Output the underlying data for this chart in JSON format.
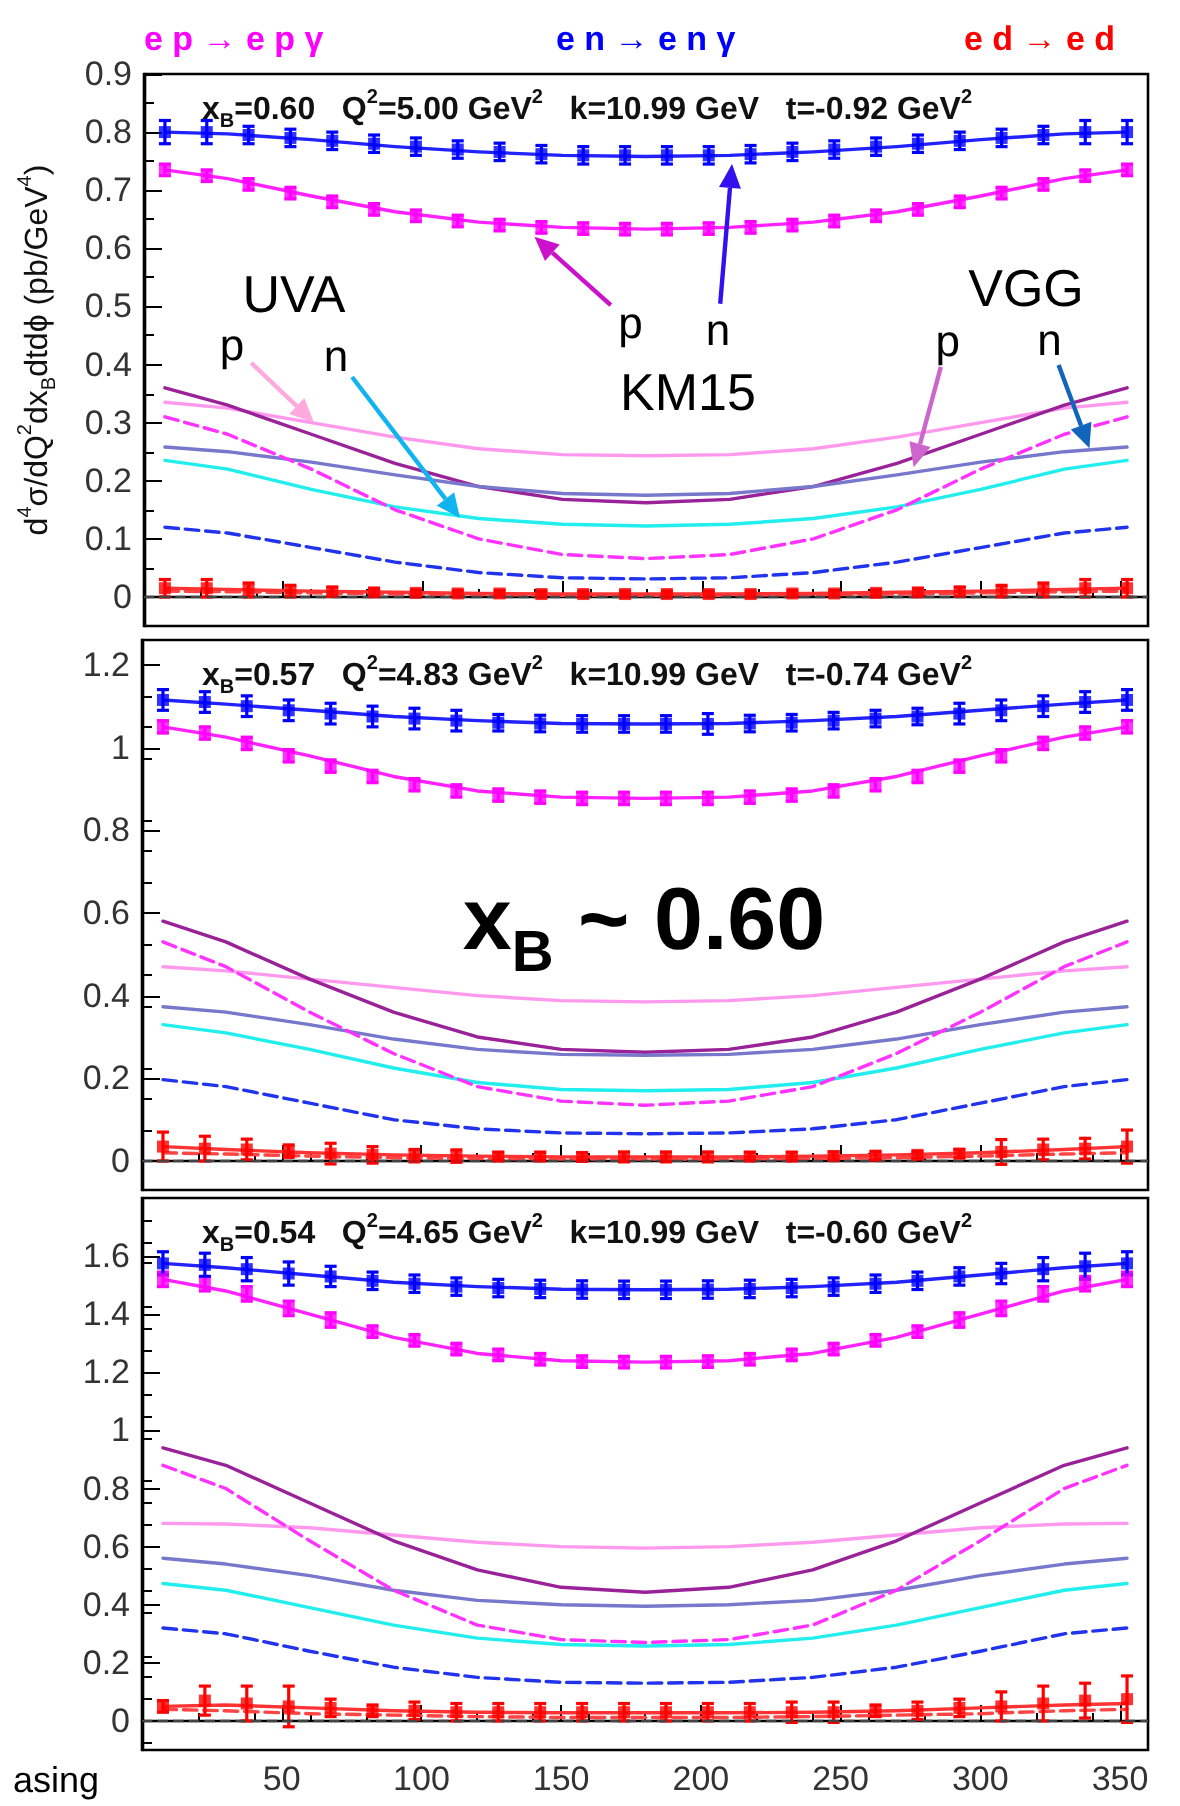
{
  "chart_data": [
    {
      "type": "line",
      "title": "x$_{B}$=0.60   Q$^{2}$=5.00 GeV$^{2}$   k=10.99 GeV   t=-0.92 GeV$^{2}$",
      "ylabel": "d$^{4}$σ/dQ$^{2}$dx$_{B}$dtdϕ (pb/GeV$^{4}$)",
      "legend": "top",
      "tick_labels": "y",
      "xlim": [
        0,
        360
      ],
      "xticks": [
        50,
        100,
        150,
        200,
        250,
        300,
        350
      ],
      "ylim": [
        -0.05,
        0.9
      ],
      "yticks": [
        0,
        0.1,
        0.2,
        0.3,
        0.4,
        0.5,
        0.6,
        0.7,
        0.8,
        0.9
      ],
      "ref_lines": [
        {
          "axis": "y",
          "value": 0,
          "color": "#444444",
          "line_style": "dashed"
        }
      ],
      "annotations": [
        "UVA",
        {
          "text": "p",
          "x": 61,
          "y": 0.3
        },
        "n",
        {
          "text": "p",
          "x": 140,
          "y": 0.62
        },
        "n",
        "KM15",
        "VGG",
        {
          "text": "p",
          "x": 276,
          "y": 0.223
        },
        {
          "text": "n",
          "x": 339,
          "y": 0.256
        }
      ],
      "x": [
        7.5,
        30,
        60,
        90,
        120,
        150,
        180,
        210,
        240,
        270,
        300,
        330,
        352.5
      ],
      "series": [
        {
          "type": "line",
          "color": "#ff99ee",
          "marker": "none",
          "line_style": "solid",
          "values": [
            0.335,
            0.325,
            0.3,
            0.275,
            0.255,
            0.245,
            0.243,
            0.245,
            0.255,
            0.275,
            0.3,
            0.325,
            0.335
          ]
        },
        {
          "type": "line",
          "color": "#22eeee",
          "marker": "none",
          "line_style": "solid",
          "values": [
            0.235,
            0.22,
            0.185,
            0.155,
            0.135,
            0.125,
            0.122,
            0.125,
            0.135,
            0.155,
            0.185,
            0.22,
            0.235
          ]
        },
        {
          "type": "line",
          "color": "#992299",
          "marker": "none",
          "line_style": "solid",
          "values": [
            0.36,
            0.33,
            0.28,
            0.23,
            0.19,
            0.168,
            0.162,
            0.168,
            0.19,
            0.23,
            0.28,
            0.33,
            0.36
          ]
        },
        {
          "type": "line",
          "color": "#7777cc",
          "marker": "none",
          "line_style": "solid",
          "values": [
            0.258,
            0.25,
            0.232,
            0.21,
            0.19,
            0.178,
            0.175,
            0.178,
            0.19,
            0.21,
            0.232,
            0.25,
            0.258
          ]
        },
        {
          "type": "line",
          "color": "#ff33ff",
          "marker": "none",
          "line_style": "dashed",
          "values": [
            0.31,
            0.28,
            0.22,
            0.15,
            0.1,
            0.073,
            0.066,
            0.073,
            0.1,
            0.15,
            0.22,
            0.28,
            0.31
          ]
        },
        {
          "type": "line",
          "color": "#2233ee",
          "marker": "none",
          "line_style": "dashed",
          "values": [
            0.12,
            0.11,
            0.085,
            0.06,
            0.042,
            0.033,
            0.031,
            0.033,
            0.042,
            0.06,
            0.085,
            0.11,
            0.12
          ]
        },
        {
          "type": "line",
          "color": "#ff4444",
          "marker": "none",
          "line_style": "dashed",
          "values": [
            0.01,
            0.009,
            0.007,
            0.005,
            0.004,
            0.003,
            0.003,
            0.003,
            0.004,
            0.005,
            0.007,
            0.009,
            0.01
          ]
        },
        {
          "type": "line",
          "color": "#ff22ff",
          "marker": "none",
          "line_style": "solid",
          "values": [
            0.735,
            0.72,
            0.69,
            0.663,
            0.645,
            0.636,
            0.633,
            0.636,
            0.645,
            0.663,
            0.69,
            0.72,
            0.735
          ]
        },
        {
          "type": "line",
          "color": "#2222ff",
          "marker": "none",
          "line_style": "solid",
          "values": [
            0.8,
            0.797,
            0.787,
            0.775,
            0.766,
            0.76,
            0.758,
            0.76,
            0.766,
            0.775,
            0.787,
            0.797,
            0.8
          ]
        },
        {
          "type": "line",
          "color": "#ff3333",
          "marker": "none",
          "line_style": "solid",
          "values": [
            0.015,
            0.013,
            0.01,
            0.008,
            0.006,
            0.005,
            0.005,
            0.005,
            0.006,
            0.008,
            0.01,
            0.013,
            0.015
          ]
        },
        {
          "type": "scatter",
          "name": "e p → e p γ",
          "color": "#ff00ff",
          "marker": "square",
          "x": [
            7.5,
            22.5,
            37.5,
            52.5,
            67.5,
            82.5,
            97.5,
            112.5,
            127.5,
            142.5,
            157.5,
            172.5,
            187.5,
            202.5,
            217.5,
            232.5,
            247.5,
            262.5,
            277.5,
            292.5,
            307.5,
            322.5,
            337.5,
            352.5
          ],
          "values": [
            0.735,
            0.725,
            0.71,
            0.695,
            0.68,
            0.667,
            0.656,
            0.647,
            0.64,
            0.636,
            0.634,
            0.633,
            0.633,
            0.634,
            0.636,
            0.64,
            0.647,
            0.656,
            0.667,
            0.68,
            0.695,
            0.71,
            0.725,
            0.735
          ],
          "errors": [
            0.01,
            0.01,
            0.01,
            0.01,
            0.01,
            0.01,
            0.01,
            0.01,
            0.01,
            0.01,
            0.01,
            0.01,
            0.01,
            0.01,
            0.01,
            0.01,
            0.01,
            0.01,
            0.01,
            0.01,
            0.01,
            0.01,
            0.01,
            0.01
          ]
        },
        {
          "type": "scatter",
          "name": "e n → e n γ",
          "color": "#0000ff",
          "marker": "square",
          "x": [
            7.5,
            22.5,
            37.5,
            52.5,
            67.5,
            82.5,
            97.5,
            112.5,
            127.5,
            142.5,
            157.5,
            172.5,
            187.5,
            202.5,
            217.5,
            232.5,
            247.5,
            262.5,
            277.5,
            292.5,
            307.5,
            322.5,
            337.5,
            352.5
          ],
          "values": [
            0.8,
            0.8,
            0.795,
            0.79,
            0.785,
            0.78,
            0.775,
            0.77,
            0.766,
            0.762,
            0.76,
            0.76,
            0.76,
            0.76,
            0.762,
            0.766,
            0.77,
            0.775,
            0.78,
            0.785,
            0.79,
            0.795,
            0.8,
            0.8
          ],
          "errors": [
            0.02,
            0.02,
            0.015,
            0.015,
            0.015,
            0.015,
            0.015,
            0.015,
            0.015,
            0.015,
            0.015,
            0.015,
            0.015,
            0.015,
            0.015,
            0.015,
            0.015,
            0.015,
            0.015,
            0.015,
            0.015,
            0.015,
            0.02,
            0.02
          ]
        },
        {
          "type": "scatter",
          "name": "e d → e d",
          "color": "#ff0000",
          "marker": "square",
          "x": [
            7.5,
            22.5,
            37.5,
            52.5,
            67.5,
            82.5,
            97.5,
            112.5,
            127.5,
            142.5,
            157.5,
            172.5,
            187.5,
            202.5,
            217.5,
            232.5,
            247.5,
            262.5,
            277.5,
            292.5,
            307.5,
            322.5,
            337.5,
            352.5
          ],
          "values": [
            0.015,
            0.015,
            0.012,
            0.01,
            0.009,
            0.008,
            0.007,
            0.006,
            0.006,
            0.005,
            0.005,
            0.005,
            0.005,
            0.005,
            0.005,
            0.006,
            0.006,
            0.007,
            0.008,
            0.009,
            0.01,
            0.012,
            0.015,
            0.015
          ],
          "errors": [
            0.015,
            0.015,
            0.012,
            0.01,
            0.008,
            0.006,
            0.005,
            0.005,
            0.005,
            0.005,
            0.005,
            0.005,
            0.005,
            0.005,
            0.005,
            0.005,
            0.005,
            0.005,
            0.006,
            0.008,
            0.01,
            0.012,
            0.015,
            0.015
          ]
        }
      ]
    },
    {
      "type": "line",
      "title": "x$_{B}$=0.57   Q$^{2}$=4.83 GeV$^{2}$   k=10.99 GeV   t=-0.74 GeV$^{2}$",
      "tick_labels": "y",
      "xlim": [
        0,
        360
      ],
      "xticks": [
        50,
        100,
        150,
        200,
        250,
        300,
        350
      ],
      "ylim": [
        -0.07,
        1.26
      ],
      "yticks": [
        0,
        0.2,
        0.4,
        0.6,
        0.8,
        1,
        1.2
      ],
      "ref_lines": [
        {
          "axis": "y",
          "value": 0,
          "color": "#444444",
          "line_style": "dashed"
        }
      ],
      "annotations": [
        "x$_{B}$ ~ 0.60"
      ],
      "x": [
        7.5,
        30,
        60,
        90,
        120,
        150,
        180,
        210,
        240,
        270,
        300,
        330,
        352.5
      ],
      "series": [
        {
          "type": "line",
          "color": "#ff99ee",
          "marker": "none",
          "line_style": "solid",
          "values": [
            0.47,
            0.46,
            0.44,
            0.42,
            0.4,
            0.388,
            0.385,
            0.388,
            0.4,
            0.42,
            0.44,
            0.46,
            0.47
          ]
        },
        {
          "type": "line",
          "color": "#22eeee",
          "marker": "none",
          "line_style": "solid",
          "values": [
            0.33,
            0.31,
            0.27,
            0.225,
            0.19,
            0.173,
            0.17,
            0.173,
            0.19,
            0.225,
            0.27,
            0.31,
            0.33
          ]
        },
        {
          "type": "line",
          "color": "#992299",
          "marker": "none",
          "line_style": "solid",
          "values": [
            0.58,
            0.53,
            0.44,
            0.36,
            0.3,
            0.27,
            0.263,
            0.27,
            0.3,
            0.36,
            0.44,
            0.53,
            0.58
          ]
        },
        {
          "type": "line",
          "color": "#7777cc",
          "marker": "none",
          "line_style": "solid",
          "values": [
            0.373,
            0.36,
            0.33,
            0.295,
            0.27,
            0.258,
            0.256,
            0.258,
            0.27,
            0.295,
            0.33,
            0.36,
            0.373
          ]
        },
        {
          "type": "line",
          "color": "#ff33ff",
          "marker": "none",
          "line_style": "dashed",
          "values": [
            0.53,
            0.47,
            0.36,
            0.26,
            0.18,
            0.145,
            0.135,
            0.145,
            0.18,
            0.26,
            0.36,
            0.47,
            0.53
          ]
        },
        {
          "type": "line",
          "color": "#2233ee",
          "marker": "none",
          "line_style": "dashed",
          "values": [
            0.197,
            0.18,
            0.14,
            0.1,
            0.078,
            0.068,
            0.066,
            0.068,
            0.078,
            0.1,
            0.14,
            0.18,
            0.197
          ]
        },
        {
          "type": "line",
          "color": "#ff4444",
          "marker": "none",
          "line_style": "dashed",
          "values": [
            0.02,
            0.017,
            0.012,
            0.008,
            0.006,
            0.005,
            0.005,
            0.005,
            0.006,
            0.008,
            0.012,
            0.017,
            0.02
          ]
        },
        {
          "type": "line",
          "color": "#ff22ff",
          "marker": "none",
          "line_style": "solid",
          "values": [
            1.05,
            1.025,
            0.98,
            0.93,
            0.895,
            0.88,
            0.877,
            0.88,
            0.895,
            0.93,
            0.98,
            1.025,
            1.05
          ]
        },
        {
          "type": "line",
          "color": "#2222ff",
          "marker": "none",
          "line_style": "solid",
          "values": [
            1.115,
            1.105,
            1.09,
            1.075,
            1.065,
            1.058,
            1.057,
            1.058,
            1.065,
            1.075,
            1.09,
            1.105,
            1.115
          ]
        },
        {
          "type": "line",
          "color": "#ff3333",
          "marker": "none",
          "line_style": "solid",
          "values": [
            0.035,
            0.028,
            0.02,
            0.015,
            0.012,
            0.01,
            0.01,
            0.01,
            0.012,
            0.015,
            0.02,
            0.028,
            0.035
          ]
        },
        {
          "type": "scatter",
          "color": "#ff00ff",
          "marker": "square",
          "x": [
            7.5,
            22.5,
            37.5,
            52.5,
            67.5,
            82.5,
            97.5,
            112.5,
            127.5,
            142.5,
            157.5,
            172.5,
            187.5,
            202.5,
            217.5,
            232.5,
            247.5,
            262.5,
            277.5,
            292.5,
            307.5,
            322.5,
            337.5,
            352.5
          ],
          "values": [
            1.05,
            1.035,
            1.01,
            0.98,
            0.955,
            0.93,
            0.91,
            0.895,
            0.885,
            0.88,
            0.877,
            0.877,
            0.877,
            0.877,
            0.88,
            0.885,
            0.895,
            0.91,
            0.93,
            0.955,
            0.98,
            1.01,
            1.035,
            1.05
          ],
          "errors": [
            0.015,
            0.015,
            0.015,
            0.015,
            0.015,
            0.015,
            0.015,
            0.015,
            0.015,
            0.015,
            0.015,
            0.015,
            0.015,
            0.015,
            0.015,
            0.015,
            0.015,
            0.015,
            0.015,
            0.015,
            0.015,
            0.015,
            0.015,
            0.015
          ]
        },
        {
          "type": "scatter",
          "color": "#0000ff",
          "marker": "square",
          "x": [
            7.5,
            22.5,
            37.5,
            52.5,
            67.5,
            82.5,
            97.5,
            112.5,
            127.5,
            142.5,
            157.5,
            172.5,
            187.5,
            202.5,
            217.5,
            232.5,
            247.5,
            262.5,
            277.5,
            292.5,
            307.5,
            322.5,
            337.5,
            352.5
          ],
          "values": [
            1.115,
            1.11,
            1.1,
            1.09,
            1.082,
            1.075,
            1.07,
            1.065,
            1.06,
            1.058,
            1.057,
            1.057,
            1.057,
            1.057,
            1.058,
            1.06,
            1.065,
            1.07,
            1.075,
            1.082,
            1.09,
            1.1,
            1.11,
            1.115
          ],
          "errors": [
            0.025,
            0.025,
            0.025,
            0.025,
            0.025,
            0.025,
            0.025,
            0.025,
            0.02,
            0.02,
            0.02,
            0.02,
            0.02,
            0.025,
            0.02,
            0.02,
            0.02,
            0.02,
            0.02,
            0.025,
            0.025,
            0.025,
            0.025,
            0.025
          ]
        },
        {
          "type": "scatter",
          "color": "#ff0000",
          "marker": "square",
          "x": [
            7.5,
            22.5,
            37.5,
            52.5,
            67.5,
            82.5,
            97.5,
            112.5,
            127.5,
            142.5,
            157.5,
            172.5,
            187.5,
            202.5,
            217.5,
            232.5,
            247.5,
            262.5,
            277.5,
            292.5,
            307.5,
            322.5,
            337.5,
            352.5
          ],
          "values": [
            0.035,
            0.03,
            0.028,
            0.024,
            0.018,
            0.015,
            0.013,
            0.012,
            0.011,
            0.011,
            0.01,
            0.01,
            0.01,
            0.01,
            0.011,
            0.011,
            0.012,
            0.013,
            0.015,
            0.018,
            0.022,
            0.028,
            0.03,
            0.035
          ],
          "errors": [
            0.035,
            0.03,
            0.025,
            0.015,
            0.025,
            0.02,
            0.015,
            0.015,
            0.01,
            0.01,
            0.01,
            0.012,
            0.012,
            0.012,
            0.01,
            0.01,
            0.01,
            0.01,
            0.008,
            0.01,
            0.03,
            0.025,
            0.025,
            0.04
          ]
        }
      ]
    },
    {
      "type": "line",
      "title": "x$_{B}$=0.54   Q$^{2}$=4.65 GeV$^{2}$   k=10.99 GeV   t=-0.60 GeV$^{2}$",
      "xlim": [
        0,
        360
      ],
      "xticks": [
        50,
        100,
        150,
        200,
        250,
        300,
        350
      ],
      "ylim": [
        -0.1,
        1.8
      ],
      "yticks": [
        0,
        0.2,
        0.4,
        0.6,
        0.8,
        1,
        1.2,
        1.4,
        1.6
      ],
      "ref_lines": [
        {
          "axis": "y",
          "value": 0,
          "color": "#444444",
          "line_style": "dashed"
        }
      ],
      "annotations": [
        "asing"
      ],
      "x": [
        7.5,
        30,
        60,
        90,
        120,
        150,
        180,
        210,
        240,
        270,
        300,
        330,
        352.5
      ],
      "series": [
        {
          "type": "line",
          "color": "#ff99ee",
          "marker": "none",
          "line_style": "solid",
          "values": [
            0.68,
            0.678,
            0.665,
            0.64,
            0.615,
            0.6,
            0.595,
            0.6,
            0.615,
            0.64,
            0.665,
            0.678,
            0.68
          ]
        },
        {
          "type": "line",
          "color": "#22eeee",
          "marker": "none",
          "line_style": "solid",
          "values": [
            0.473,
            0.45,
            0.39,
            0.33,
            0.285,
            0.263,
            0.258,
            0.263,
            0.285,
            0.33,
            0.39,
            0.45,
            0.473
          ]
        },
        {
          "type": "line",
          "color": "#992299",
          "marker": "none",
          "line_style": "solid",
          "values": [
            0.94,
            0.88,
            0.75,
            0.62,
            0.52,
            0.46,
            0.443,
            0.46,
            0.52,
            0.62,
            0.75,
            0.88,
            0.94
          ]
        },
        {
          "type": "line",
          "color": "#7777cc",
          "marker": "none",
          "line_style": "solid",
          "values": [
            0.56,
            0.54,
            0.5,
            0.45,
            0.415,
            0.4,
            0.395,
            0.4,
            0.415,
            0.45,
            0.5,
            0.54,
            0.56
          ]
        },
        {
          "type": "line",
          "color": "#ff33ff",
          "marker": "none",
          "line_style": "dashed",
          "values": [
            0.88,
            0.8,
            0.62,
            0.45,
            0.33,
            0.28,
            0.27,
            0.28,
            0.33,
            0.45,
            0.62,
            0.8,
            0.88
          ]
        },
        {
          "type": "line",
          "color": "#2233ee",
          "marker": "none",
          "line_style": "dashed",
          "values": [
            0.32,
            0.3,
            0.24,
            0.185,
            0.15,
            0.133,
            0.13,
            0.133,
            0.15,
            0.185,
            0.24,
            0.3,
            0.32
          ]
        },
        {
          "type": "line",
          "color": "#ff4444",
          "marker": "none",
          "line_style": "dashed",
          "values": [
            0.04,
            0.035,
            0.025,
            0.02,
            0.015,
            0.012,
            0.012,
            0.012,
            0.015,
            0.02,
            0.025,
            0.035,
            0.04
          ]
        },
        {
          "type": "line",
          "color": "#ff22ff",
          "marker": "none",
          "line_style": "solid",
          "values": [
            1.52,
            1.48,
            1.4,
            1.32,
            1.265,
            1.24,
            1.235,
            1.24,
            1.265,
            1.32,
            1.4,
            1.48,
            1.52
          ]
        },
        {
          "type": "line",
          "color": "#2222ff",
          "marker": "none",
          "line_style": "solid",
          "values": [
            1.575,
            1.56,
            1.535,
            1.51,
            1.495,
            1.486,
            1.484,
            1.486,
            1.495,
            1.51,
            1.535,
            1.56,
            1.575
          ]
        },
        {
          "type": "line",
          "color": "#ff3333",
          "marker": "none",
          "line_style": "solid",
          "values": [
            0.05,
            0.055,
            0.045,
            0.035,
            0.03,
            0.028,
            0.028,
            0.028,
            0.03,
            0.035,
            0.045,
            0.055,
            0.06
          ]
        },
        {
          "type": "scatter",
          "color": "#ff00ff",
          "marker": "square",
          "x": [
            7.5,
            22.5,
            37.5,
            52.5,
            67.5,
            82.5,
            97.5,
            112.5,
            127.5,
            142.5,
            157.5,
            172.5,
            187.5,
            202.5,
            217.5,
            232.5,
            247.5,
            262.5,
            277.5,
            292.5,
            307.5,
            322.5,
            337.5,
            352.5
          ],
          "values": [
            1.52,
            1.505,
            1.47,
            1.42,
            1.38,
            1.34,
            1.31,
            1.28,
            1.26,
            1.245,
            1.237,
            1.235,
            1.235,
            1.237,
            1.245,
            1.26,
            1.28,
            1.31,
            1.34,
            1.38,
            1.42,
            1.47,
            1.505,
            1.52
          ],
          "errors": [
            0.025,
            0.025,
            0.025,
            0.025,
            0.025,
            0.02,
            0.02,
            0.02,
            0.02,
            0.02,
            0.02,
            0.02,
            0.02,
            0.02,
            0.02,
            0.02,
            0.02,
            0.02,
            0.02,
            0.025,
            0.025,
            0.025,
            0.025,
            0.025
          ]
        },
        {
          "type": "scatter",
          "color": "#0000ff",
          "marker": "square",
          "x": [
            7.5,
            22.5,
            37.5,
            52.5,
            67.5,
            82.5,
            97.5,
            112.5,
            127.5,
            142.5,
            157.5,
            172.5,
            187.5,
            202.5,
            217.5,
            232.5,
            247.5,
            262.5,
            277.5,
            292.5,
            307.5,
            322.5,
            337.5,
            352.5
          ],
          "values": [
            1.575,
            1.57,
            1.555,
            1.54,
            1.53,
            1.515,
            1.505,
            1.495,
            1.49,
            1.487,
            1.485,
            1.484,
            1.484,
            1.485,
            1.487,
            1.49,
            1.495,
            1.505,
            1.515,
            1.53,
            1.54,
            1.555,
            1.565,
            1.575
          ],
          "errors": [
            0.04,
            0.04,
            0.04,
            0.04,
            0.035,
            0.03,
            0.03,
            0.03,
            0.03,
            0.03,
            0.03,
            0.03,
            0.03,
            0.03,
            0.03,
            0.03,
            0.03,
            0.03,
            0.03,
            0.03,
            0.035,
            0.04,
            0.045,
            0.04
          ]
        },
        {
          "type": "scatter",
          "color": "#ff0000",
          "marker": "square",
          "x": [
            7.5,
            22.5,
            37.5,
            52.5,
            67.5,
            82.5,
            97.5,
            112.5,
            127.5,
            142.5,
            157.5,
            172.5,
            187.5,
            202.5,
            217.5,
            232.5,
            247.5,
            262.5,
            277.5,
            292.5,
            307.5,
            322.5,
            337.5,
            352.5
          ],
          "values": [
            0.05,
            0.07,
            0.06,
            0.05,
            0.045,
            0.035,
            0.035,
            0.03,
            0.03,
            0.03,
            0.03,
            0.03,
            0.03,
            0.03,
            0.03,
            0.03,
            0.03,
            0.035,
            0.035,
            0.045,
            0.05,
            0.06,
            0.07,
            0.075
          ],
          "errors": [
            0.02,
            0.05,
            0.06,
            0.07,
            0.03,
            0.02,
            0.03,
            0.03,
            0.03,
            0.03,
            0.03,
            0.03,
            0.03,
            0.03,
            0.03,
            0.035,
            0.035,
            0.02,
            0.03,
            0.03,
            0.05,
            0.06,
            0.06,
            0.08
          ]
        }
      ]
    }
  ]
}
